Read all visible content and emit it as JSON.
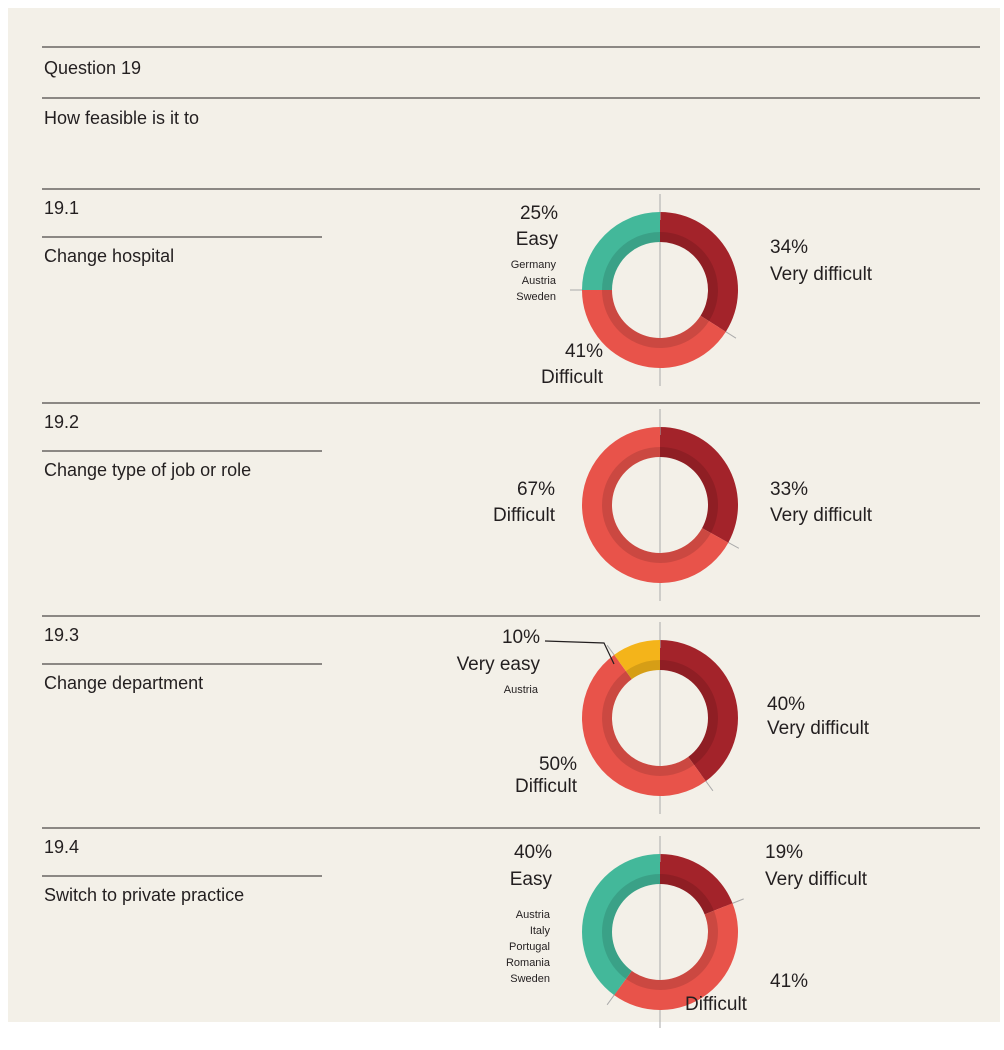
{
  "header": {
    "question": "Question 19",
    "prompt": "How feasible is it to"
  },
  "chart_data": [
    {
      "type": "donut",
      "id": "19.1",
      "title": "Change hospital",
      "categories": [
        "Very difficult",
        "Difficult",
        "Easy"
      ],
      "values": [
        34,
        41,
        25
      ],
      "value_labels": [
        "34%",
        "41%",
        "25%"
      ],
      "colors": [
        "#a3232a",
        "#e8534a",
        "#43b89a"
      ],
      "countries": [
        "Germany",
        "Austria",
        "Sweden"
      ]
    },
    {
      "type": "donut",
      "id": "19.2",
      "title": "Change type of job or role",
      "categories": [
        "Very difficult",
        "Difficult"
      ],
      "values": [
        33,
        67
      ],
      "value_labels": [
        "33%",
        "67%"
      ],
      "colors": [
        "#a3232a",
        "#e8534a"
      ]
    },
    {
      "type": "donut",
      "id": "19.3",
      "title": "Change department",
      "categories": [
        "Very difficult",
        "Difficult",
        "Very easy"
      ],
      "values": [
        40,
        50,
        10
      ],
      "value_labels": [
        "40%",
        "50%",
        "10%"
      ],
      "colors": [
        "#a3232a",
        "#e8534a",
        "#f4b41a"
      ],
      "countries": [
        "Austria"
      ]
    },
    {
      "type": "donut",
      "id": "19.4",
      "title": "Switch to private practice",
      "categories": [
        "Very difficult",
        "Difficult",
        "Easy"
      ],
      "values": [
        19,
        41,
        40
      ],
      "value_labels": [
        "19%",
        "41%",
        "40%"
      ],
      "colors": [
        "#a3232a",
        "#e8534a",
        "#43b89a"
      ],
      "countries": [
        "Austria",
        "Italy",
        "Portugal",
        "Romania",
        "Sweden"
      ]
    }
  ]
}
